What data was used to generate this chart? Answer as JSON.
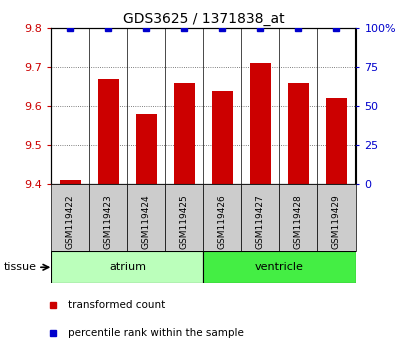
{
  "title": "GDS3625 / 1371838_at",
  "samples": [
    "GSM119422",
    "GSM119423",
    "GSM119424",
    "GSM119425",
    "GSM119426",
    "GSM119427",
    "GSM119428",
    "GSM119429"
  ],
  "transformed_counts": [
    9.41,
    9.67,
    9.58,
    9.66,
    9.64,
    9.71,
    9.66,
    9.62
  ],
  "percentile_ranks": [
    100,
    100,
    100,
    100,
    100,
    100,
    100,
    100
  ],
  "ylim_left": [
    9.4,
    9.8
  ],
  "ylim_right": [
    0,
    100
  ],
  "yticks_left": [
    9.4,
    9.5,
    9.6,
    9.7,
    9.8
  ],
  "yticks_right": [
    0,
    25,
    50,
    75,
    100
  ],
  "bar_color": "#cc0000",
  "dot_color": "#0000cc",
  "groups": [
    {
      "name": "atrium",
      "start": 0,
      "end": 3,
      "color": "#bbffbb"
    },
    {
      "name": "ventricle",
      "start": 4,
      "end": 7,
      "color": "#44ee44"
    }
  ],
  "tissue_label": "tissue",
  "legend_items": [
    {
      "label": "transformed count",
      "color": "#cc0000"
    },
    {
      "label": "percentile rank within the sample",
      "color": "#0000cc"
    }
  ],
  "bar_width": 0.55,
  "base_value": 9.4,
  "tick_bg_color": "#cccccc",
  "grid_dotted_color": "#555555"
}
